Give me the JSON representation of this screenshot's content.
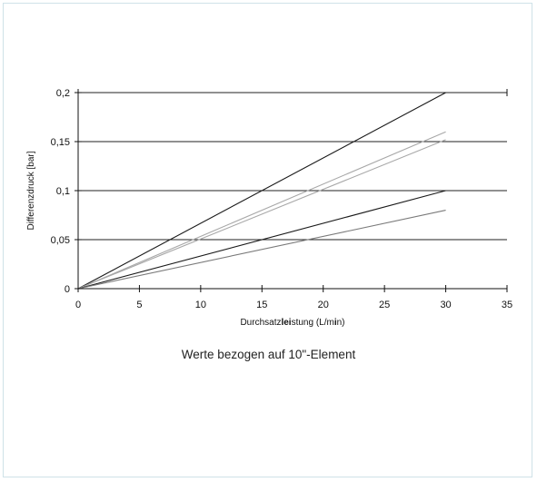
{
  "chart_data": {
    "type": "line",
    "xlabel": {
      "parts": [
        {
          "text": "Durchsatz",
          "bold": false
        },
        {
          "text": "lei",
          "bold": true
        },
        {
          "text": "stung (L/m",
          "bold": false
        },
        {
          "text": "i",
          "bold": true
        },
        {
          "text": "n)",
          "bold": false
        }
      ]
    },
    "ylabel": "Differenzdruck [bar]",
    "xlim": [
      0,
      35
    ],
    "ylim": [
      0,
      0.2
    ],
    "x_ticks": [
      0,
      5,
      10,
      15,
      20,
      25,
      30,
      35
    ],
    "x_tick_labels": [
      "0",
      "5",
      "10",
      "15",
      "20",
      "25",
      "30",
      "35"
    ],
    "y_ticks": [
      0,
      0.05,
      0.1,
      0.15,
      0.2
    ],
    "y_tick_labels": [
      "0",
      "0,05",
      "0,1",
      "0,15",
      "0,2"
    ],
    "grid": {
      "horizontal": true,
      "vertical": false
    },
    "series": [
      {
        "color": "#1a1a1a",
        "points": [
          [
            0,
            0
          ],
          [
            30,
            0.2
          ]
        ]
      },
      {
        "color": "#a8a8a8",
        "points": [
          [
            0,
            0
          ],
          [
            30,
            0.16
          ]
        ]
      },
      {
        "color": "#a8a8a8",
        "points": [
          [
            0,
            0
          ],
          [
            30,
            0.152
          ]
        ]
      },
      {
        "color": "#1a1a1a",
        "points": [
          [
            0,
            0
          ],
          [
            30,
            0.1
          ]
        ]
      },
      {
        "color": "#7a7a7a",
        "points": [
          [
            0,
            0
          ],
          [
            30,
            0.08
          ]
        ]
      }
    ]
  },
  "caption": "Werte bezogen auf 10\"-Element",
  "colors": {
    "axis": "#111111",
    "grid": "#222222",
    "frame": "#cfe2e8"
  }
}
